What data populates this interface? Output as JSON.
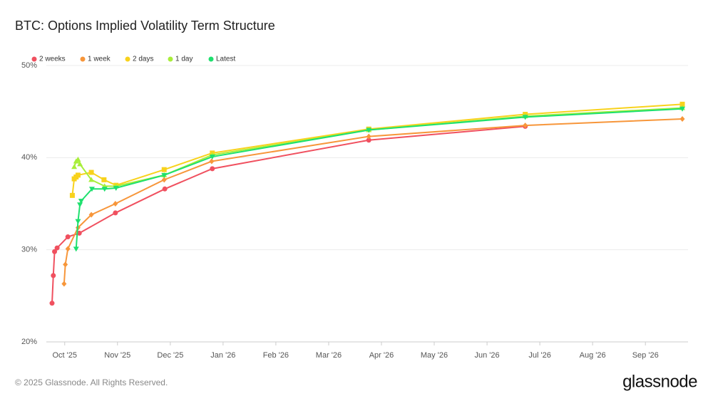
{
  "chart_data": {
    "type": "line",
    "title": "BTC: Options Implied Volatility Term Structure",
    "xlim": [
      2025.721,
      2026.734
    ],
    "ylim": [
      20,
      50
    ],
    "xticks": [
      {
        "value": 2025.75,
        "label": "Oct '25"
      },
      {
        "value": 2025.8333,
        "label": "Nov '25"
      },
      {
        "value": 2025.9167,
        "label": "Dec '25"
      },
      {
        "value": 2026.0,
        "label": "Jan '26"
      },
      {
        "value": 2026.0833,
        "label": "Feb '26"
      },
      {
        "value": 2026.1667,
        "label": "Mar '26"
      },
      {
        "value": 2026.25,
        "label": "Apr '26"
      },
      {
        "value": 2026.3333,
        "label": "May '26"
      },
      {
        "value": 2026.4167,
        "label": "Jun '26"
      },
      {
        "value": 2026.5,
        "label": "Jul '26"
      },
      {
        "value": 2026.5833,
        "label": "Aug '26"
      },
      {
        "value": 2026.6667,
        "label": "Sep '26"
      }
    ],
    "yticks": [
      {
        "value": 20,
        "label": "20%"
      },
      {
        "value": 30,
        "label": "30%"
      },
      {
        "value": 40,
        "label": "40%"
      },
      {
        "value": 50,
        "label": "50%"
      }
    ],
    "grid": true,
    "series": [
      {
        "name": "2 weeks",
        "color": "#f0505f",
        "marker": "circle",
        "x": [
          2025.73,
          2025.732,
          2025.734,
          2025.738,
          2025.755,
          2025.773,
          2025.83,
          2025.908,
          2025.983,
          2026.23,
          2026.477
        ],
        "values": [
          24.2,
          27.2,
          29.8,
          30.2,
          31.4,
          31.8,
          34.0,
          36.6,
          38.8,
          41.9,
          43.4
        ]
      },
      {
        "name": "1 week",
        "color": "#f7963a",
        "marker": "diamond",
        "x": [
          2025.749,
          2025.751,
          2025.755,
          2025.771,
          2025.792,
          2025.83,
          2025.907,
          2025.982,
          2026.23,
          2026.477,
          2026.725
        ],
        "values": [
          26.3,
          28.4,
          30.1,
          32.4,
          33.8,
          35.0,
          37.6,
          39.6,
          42.3,
          43.5,
          44.2
        ]
      },
      {
        "name": "2 days",
        "color": "#f8d21c",
        "marker": "square",
        "x": [
          2025.762,
          2025.765,
          2025.768,
          2025.771,
          2025.792,
          2025.812,
          2025.831,
          2025.907,
          2025.983,
          2026.23,
          2026.477,
          2026.725
        ],
        "values": [
          35.9,
          37.7,
          37.9,
          38.1,
          38.4,
          37.6,
          37.0,
          38.7,
          40.5,
          43.1,
          44.7,
          45.8
        ]
      },
      {
        "name": "1 day",
        "color": "#a8ee3a",
        "marker": "triangle-up",
        "x": [
          2025.765,
          2025.768,
          2025.771,
          2025.774,
          2025.792,
          2025.813,
          2025.831,
          2025.907,
          2025.983,
          2026.23,
          2026.477,
          2026.725
        ],
        "values": [
          39.0,
          39.6,
          39.8,
          39.3,
          37.6,
          36.9,
          36.9,
          38.1,
          40.3,
          43.0,
          44.5,
          45.4
        ]
      },
      {
        "name": "Latest",
        "color": "#1ee06e",
        "marker": "triangle-down",
        "x": [
          2025.768,
          2025.771,
          2025.774,
          2025.776,
          2025.793,
          2025.813,
          2025.831,
          2025.907,
          2025.983,
          2026.23,
          2026.477,
          2026.725
        ],
        "values": [
          30.1,
          33.1,
          34.9,
          35.3,
          36.6,
          36.6,
          36.7,
          38.1,
          40.1,
          43.0,
          44.4,
          45.3
        ]
      }
    ]
  },
  "copyright": "© 2025 Glassnode. All Rights Reserved.",
  "brand": "glassnode"
}
